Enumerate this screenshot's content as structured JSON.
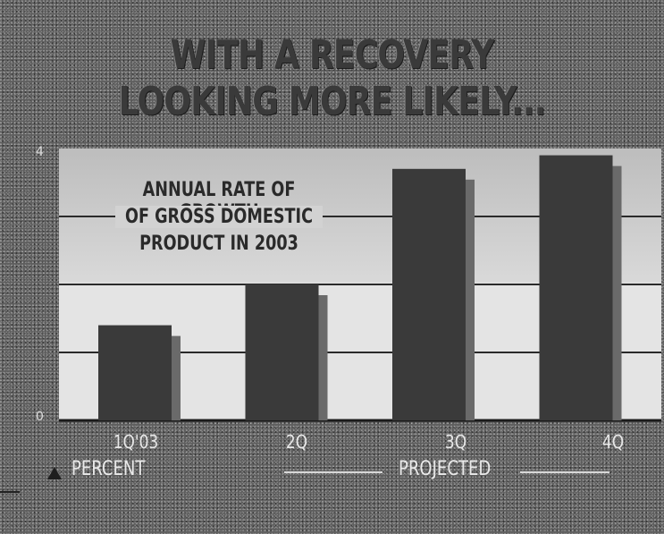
{
  "headline": [
    "WITH A RECOVERY",
    "LOOKING MORE LIKELY..."
  ],
  "colors": {
    "background": "#5e5e5e",
    "panel": "#e4e4e4",
    "bar": "#3a3a3a",
    "bar_shadow": "#6a6a6a",
    "gridline": "#2a2a2a"
  },
  "chart_data": {
    "type": "bar",
    "title": [
      "ANNUAL RATE OF GROWTH",
      "OF GROSS DOMESTIC",
      "PRODUCT IN 2003"
    ],
    "categories": [
      "1Q'03",
      "2Q",
      "3Q",
      "4Q"
    ],
    "values": [
      1.4,
      2.0,
      3.7,
      3.9
    ],
    "ylim": [
      0,
      4
    ],
    "yticks": [
      "0",
      "4"
    ],
    "ylabel": "PERCENT",
    "annotation": "PROJECTED",
    "grid": true
  }
}
